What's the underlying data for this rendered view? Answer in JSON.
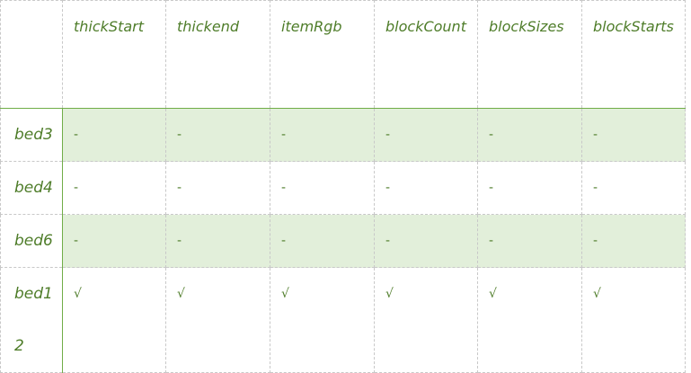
{
  "columns": [
    "",
    "thickStart",
    "thickend",
    "itemRgb",
    "blockCount",
    "blockSizes",
    "blockStarts"
  ],
  "rows": [
    {
      "label": "bed3",
      "cells": [
        "-",
        "-",
        "-",
        "-",
        "-",
        "-"
      ]
    },
    {
      "label": "bed4",
      "cells": [
        "-",
        "-",
        "-",
        "-",
        "-",
        "-"
      ]
    },
    {
      "label": "bed6",
      "cells": [
        "-",
        "-",
        "-",
        "-",
        "-",
        "-"
      ]
    },
    {
      "label": "bed12",
      "cells": [
        "√",
        "√",
        "√",
        "√",
        "√",
        "√"
      ]
    }
  ],
  "colors": {
    "text": "#4f7d2a",
    "band": "#e2efda",
    "accent": "#70ad47"
  }
}
